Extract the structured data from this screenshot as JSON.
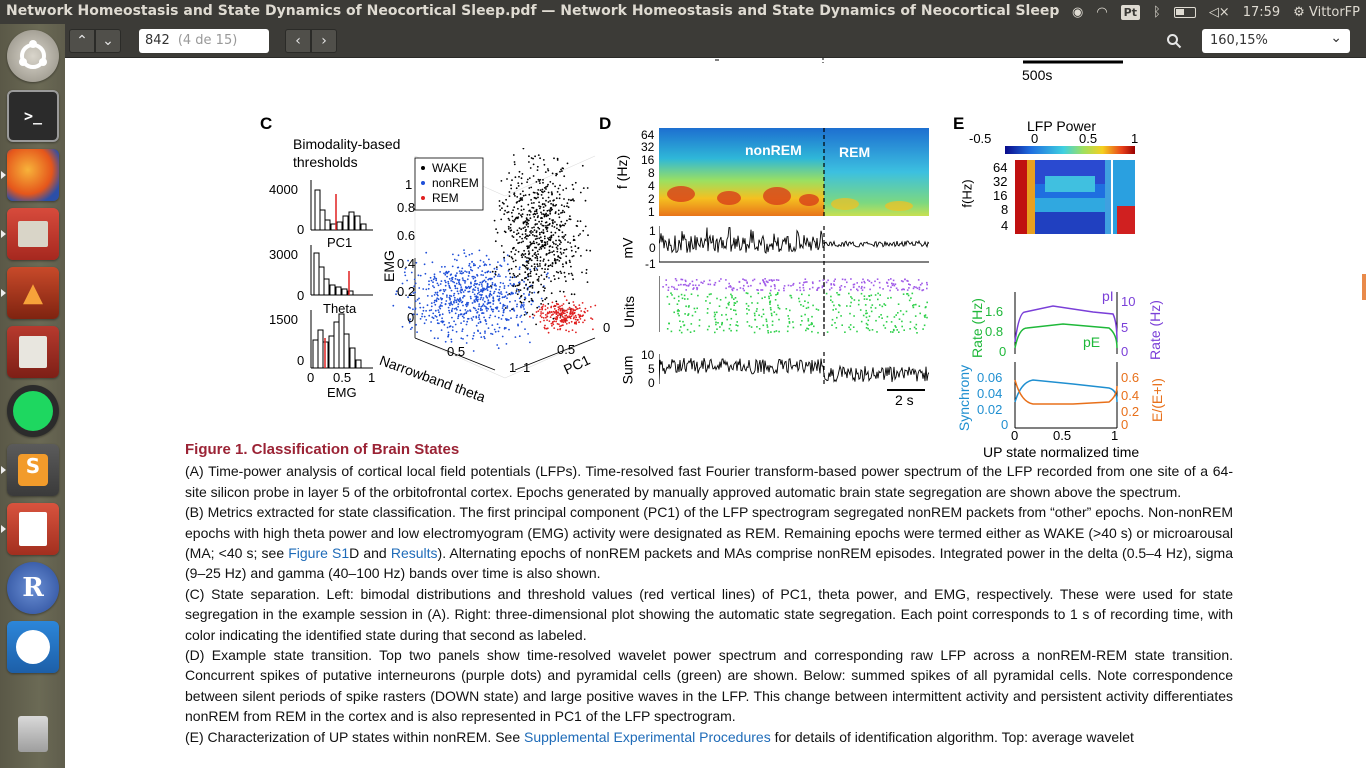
{
  "window": {
    "title": "Network Homeostasis and State Dynamics of Neocortical Sleep.pdf — Network Homeostasis and State Dynamics of Neocortical Sleep"
  },
  "tray": {
    "keyboard": "Pt",
    "time": "17:59",
    "user": "VittorFP"
  },
  "toolbar": {
    "page_value": "842",
    "page_of": "(4 de 15)",
    "zoom_value": "160,15%"
  },
  "top_scale": "500s",
  "panel_c": {
    "label": "C",
    "subtitle_line1": "Bimodality-based",
    "subtitle_line2": "thresholds",
    "hist1_ymax": "4000",
    "hist1_y0": "0",
    "hist1_xlabel": "PC1",
    "hist2_ymax": "3000",
    "hist2_y0": "0",
    "hist2_xlabel": "Theta",
    "hist3_ymax": "1500",
    "hist3_y0": "0",
    "hist3_xlabel": "EMG",
    "hist3_x0": "0",
    "hist3_x05": "0.5",
    "hist3_x1": "1",
    "legend": [
      "WAKE",
      "nonREM",
      "REM"
    ],
    "z_label": "EMG",
    "z_ticks": [
      "1",
      "0.8",
      "0.6",
      "0.4",
      "0.2",
      "0"
    ],
    "x_label": "Narrowband theta",
    "x_ticks": [
      "0.5",
      "1"
    ],
    "y_label": "PC1",
    "y_ticks": [
      "0.5",
      "1",
      "0"
    ]
  },
  "panel_d": {
    "label": "D",
    "spec_ylabel": "f (Hz)",
    "spec_yticks": [
      "64",
      "32",
      "16",
      "8",
      "4",
      "2",
      "1"
    ],
    "state1": "nonREM",
    "state2": "REM",
    "lfp_ylabel": "mV",
    "lfp_yticks": [
      "1",
      "0",
      "-1"
    ],
    "units_ylabel": "Units",
    "sum_ylabel": "Sum",
    "sum_yticks": [
      "10",
      "5",
      "0"
    ],
    "scalebar": "2 s"
  },
  "panel_e": {
    "label": "E",
    "cbar_title": "LFP Power",
    "cbar_ticks": [
      "-0.5",
      "0",
      "0.5",
      "1"
    ],
    "spec_ylabel": "f(Hz)",
    "spec_yticks": [
      "64",
      "32",
      "16",
      "8",
      "4"
    ],
    "rate_left_label": "Rate (Hz)",
    "rate_left_ticks": [
      "1.6",
      "0.8",
      "0"
    ],
    "rate_right_label": "Rate (Hz)",
    "rate_right_ticks": [
      "10",
      "5",
      "0"
    ],
    "pI": "pI",
    "pE": "pE",
    "sync_label": "Synchrony",
    "sync_ticks": [
      "0.06",
      "0.04",
      "0.02",
      "0"
    ],
    "ei_label": "E/(E+I)",
    "ei_ticks": [
      "0.6",
      "0.4",
      "0.2",
      "0"
    ],
    "x_ticks": [
      "0",
      "0.5",
      "1"
    ],
    "x_label": "UP state normalized time"
  },
  "caption": {
    "title": "Figure 1.  Classification of Brain States",
    "a": "(A) Time-power analysis of cortical local field potentials (LFPs). Time-resolved fast Fourier transform-based power spectrum of the LFP recorded from one site of a 64-site silicon probe in layer 5 of the orbitofrontal cortex. Epochs generated by manually approved automatic brain state segregation are shown above the spectrum.",
    "b1": "(B) Metrics extracted for state classification. The first principal component (PC1) of the LFP spectrogram segregated nonREM packets from “other” epochs. Non-nonREM epochs with high theta power and low electromyogram (EMG) activity were designated as REM. Remaining epochs were termed either as WAKE (>40 s) or microarousal (MA; <40 s; see ",
    "b_link1": "Figure S1",
    "b2": "D and ",
    "b_link2": "Results",
    "b3": "). Alternating epochs of nonREM packets and MAs comprise nonREM episodes. Integrated power in the delta (0.5–4 Hz), sigma (9–25 Hz) and gamma (40–100 Hz) bands over time is also shown.",
    "c": "(C) State separation. Left: bimodal distributions and threshold values (red vertical lines) of PC1, theta power, and EMG, respectively. These were used for state segregation in the example session in (A). Right: three-dimensional plot showing the automatic state segregation. Each point corresponds to 1 s of recording time, with color indicating the identified state during that second as labeled.",
    "d": "(D) Example state transition. Top two panels show time-resolved wavelet power spectrum and corresponding raw LFP across a nonREM-REM state transition. Concurrent spikes of putative interneurons (purple dots) and pyramidal cells (green) are shown. Below: summed spikes of all pyramidal cells. Note correspondence between silent periods of spike rasters (DOWN state) and large positive waves in the LFP. This change between intermittent activity and persistent activity differentiates nonREM from REM in the cortex and is also represented in PC1 of the LFP spectrogram.",
    "e1": "(E) Characterization of UP states within nonREM. See ",
    "e_link": "Supplemental Experimental Procedures",
    "e2": " for details of identification algorithm. Top: average wavelet"
  },
  "colors": {
    "caption_title": "#9b2335",
    "link": "#1e6bb8",
    "wake": "#000000",
    "nonrem": "#1f4fd8",
    "rem": "#e02020",
    "pI": "#7a3fd8",
    "pE": "#1fb83a",
    "sync": "#1f8fd0",
    "ei": "#e8701a"
  }
}
